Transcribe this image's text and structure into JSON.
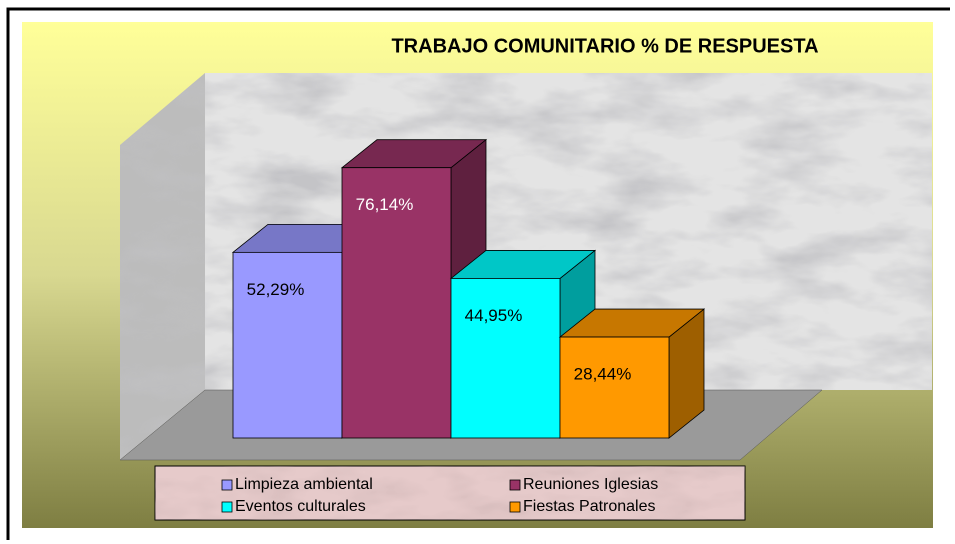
{
  "chart_data": {
    "type": "bar3d",
    "title": "TRABAJO COMUNITARIO % DE RESPUESTA",
    "series": [
      {
        "name": "Limpieza ambiental",
        "color": "#9999ff",
        "values": [
          52.29
        ],
        "value_labels": [
          "52,29%"
        ]
      },
      {
        "name": "Reuniones Iglesias",
        "color": "#993366",
        "values": [
          76.14
        ],
        "value_labels": [
          "76,14%"
        ]
      },
      {
        "name": "Eventos culturales",
        "color": "#00ffff",
        "values": [
          44.95
        ],
        "value_labels": [
          "44,95%"
        ]
      },
      {
        "name": "Fiestas Patronales",
        "color": "#ff9900",
        "values": [
          28.44
        ],
        "value_labels": [
          "28,44%"
        ]
      }
    ],
    "legend": "bottom"
  }
}
